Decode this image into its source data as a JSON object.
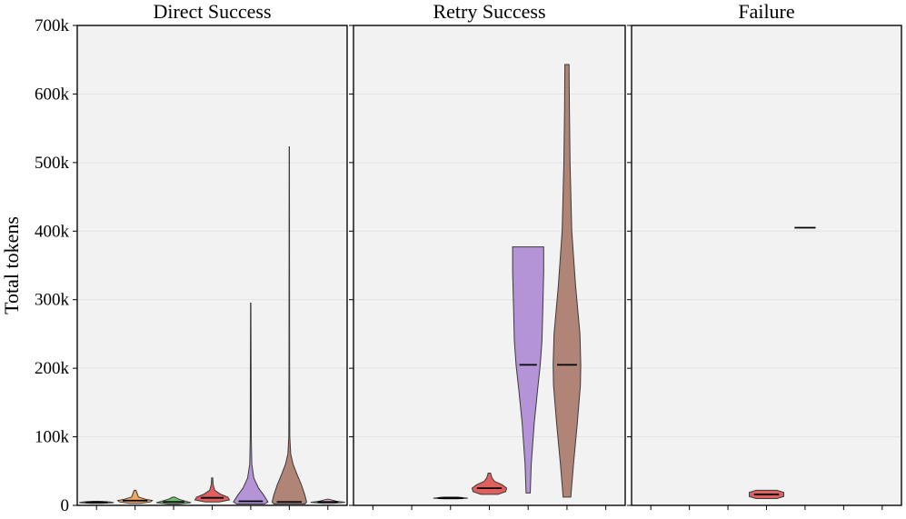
{
  "chart_data": {
    "type": "violin",
    "ylabel": "Total tokens",
    "ylim": [
      0,
      700000
    ],
    "yticks": [
      0,
      100000,
      200000,
      300000,
      400000,
      500000,
      600000,
      700000
    ],
    "ytick_labels": [
      "0",
      "100k",
      "200k",
      "300k",
      "400k",
      "500k",
      "600k",
      "700k"
    ],
    "grid": true,
    "panels": [
      {
        "title": "Direct Success",
        "categories": 7,
        "violins": [
          {
            "category": 0,
            "color": "#7fa2cf",
            "min": 3000,
            "max": 6000,
            "median": 4500,
            "profile": [
              [
                3000,
                0.3
              ],
              [
                4000,
                1.0
              ],
              [
                5000,
                0.8
              ],
              [
                6000,
                0.2
              ]
            ]
          },
          {
            "category": 1,
            "color": "#f0a860",
            "min": 3000,
            "max": 22000,
            "median": 7000,
            "profile": [
              [
                3000,
                0.3
              ],
              [
                5000,
                0.9
              ],
              [
                7000,
                1.0
              ],
              [
                9000,
                0.6
              ],
              [
                12000,
                0.2
              ],
              [
                22000,
                0.05
              ]
            ]
          },
          {
            "category": 2,
            "color": "#6fbf6f",
            "min": 2000,
            "max": 12000,
            "median": 5000,
            "profile": [
              [
                2000,
                0.3
              ],
              [
                4000,
                1.0
              ],
              [
                6000,
                0.7
              ],
              [
                9000,
                0.3
              ],
              [
                12000,
                0.05
              ]
            ]
          },
          {
            "category": 3,
            "color": "#e06060",
            "min": 5000,
            "max": 40000,
            "median": 11000,
            "profile": [
              [
                5000,
                0.4
              ],
              [
                8000,
                1.0
              ],
              [
                12000,
                0.9
              ],
              [
                16000,
                0.5
              ],
              [
                22000,
                0.15
              ],
              [
                30000,
                0.06
              ],
              [
                40000,
                0.03
              ]
            ]
          },
          {
            "category": 4,
            "color": "#b493d6",
            "min": 2000,
            "max": 295000,
            "median": 6000,
            "profile": [
              [
                2000,
                0.8
              ],
              [
                5000,
                1.0
              ],
              [
                15000,
                0.75
              ],
              [
                25000,
                0.45
              ],
              [
                40000,
                0.18
              ],
              [
                60000,
                0.06
              ],
              [
                100000,
                0.03
              ],
              [
                200000,
                0.02
              ],
              [
                295000,
                0.01
              ]
            ]
          },
          {
            "category": 5,
            "color": "#b08476",
            "min": 2000,
            "max": 523000,
            "median": 5000,
            "profile": [
              [
                2000,
                0.9
              ],
              [
                5000,
                1.0
              ],
              [
                15000,
                0.9
              ],
              [
                30000,
                0.7
              ],
              [
                45000,
                0.45
              ],
              [
                60000,
                0.22
              ],
              [
                75000,
                0.08
              ],
              [
                100000,
                0.03
              ],
              [
                200000,
                0.02
              ],
              [
                350000,
                0.015
              ],
              [
                523000,
                0.01
              ]
            ]
          },
          {
            "category": 6,
            "color": "#e2a6cf",
            "min": 3000,
            "max": 9000,
            "median": 5000,
            "profile": [
              [
                3000,
                0.3
              ],
              [
                4500,
                1.0
              ],
              [
                6000,
                0.5
              ],
              [
                9000,
                0.05
              ]
            ]
          }
        ]
      },
      {
        "title": "Retry Success",
        "categories": 7,
        "violins": [
          {
            "category": 2,
            "color": "#6fbf6f",
            "min": 9500,
            "max": 12000,
            "median": 10500,
            "profile": [
              [
                9500,
                0.4
              ],
              [
                10500,
                1.0
              ],
              [
                12000,
                0.4
              ]
            ]
          },
          {
            "category": 3,
            "color": "#e06060",
            "min": 16000,
            "max": 47000,
            "median": 25000,
            "profile": [
              [
                16000,
                0.5
              ],
              [
                20000,
                0.95
              ],
              [
                25000,
                1.0
              ],
              [
                30000,
                0.75
              ],
              [
                35000,
                0.3
              ],
              [
                40000,
                0.15
              ],
              [
                47000,
                0.07
              ]
            ]
          },
          {
            "category": 4,
            "color": "#b493d6",
            "min": 18000,
            "max": 377000,
            "median": 205000,
            "profile": [
              [
                18000,
                0.12
              ],
              [
                60000,
                0.18
              ],
              [
                120000,
                0.35
              ],
              [
                170000,
                0.55
              ],
              [
                205000,
                0.7
              ],
              [
                240000,
                0.8
              ],
              [
                290000,
                0.85
              ],
              [
                340000,
                0.9
              ],
              [
                377000,
                0.9
              ]
            ]
          },
          {
            "category": 5,
            "color": "#b08476",
            "min": 12000,
            "max": 643000,
            "median": 205000,
            "profile": [
              [
                12000,
                0.22
              ],
              [
                60000,
                0.38
              ],
              [
                120000,
                0.6
              ],
              [
                175000,
                0.78
              ],
              [
                205000,
                0.8
              ],
              [
                250000,
                0.75
              ],
              [
                320000,
                0.5
              ],
              [
                400000,
                0.28
              ],
              [
                500000,
                0.18
              ],
              [
                580000,
                0.14
              ],
              [
                643000,
                0.12
              ]
            ]
          }
        ]
      },
      {
        "title": "Failure",
        "categories": 7,
        "violins": [
          {
            "category": 3,
            "color": "#e06060",
            "min": 10000,
            "max": 22000,
            "median": 16000,
            "profile": [
              [
                10000,
                0.6
              ],
              [
                13000,
                1.0
              ],
              [
                19000,
                1.0
              ],
              [
                22000,
                0.6
              ]
            ]
          },
          {
            "category": 4,
            "color": "#b493d6",
            "min": 405000,
            "max": 405000,
            "median": 405000,
            "profile": [
              [
                405000,
                0.0
              ]
            ]
          }
        ]
      }
    ]
  }
}
